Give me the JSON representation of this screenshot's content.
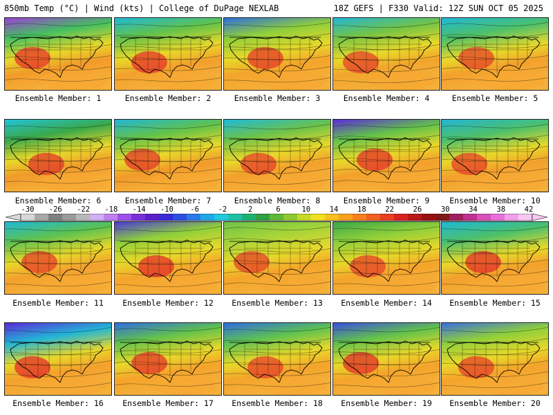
{
  "header": {
    "left_title": "850mb Temp (°C) | Wind (kts) | College of DuPage NEXLAB",
    "right_title": "18Z GEFS | F330 Valid: 12Z SUN OCT 05 2025"
  },
  "panels": [
    {
      "label": "Ensemble Member: 1",
      "north": "#9b3fd6",
      "mid": "#44c060",
      "south": "#f29a2a",
      "hot": "#e8352a"
    },
    {
      "label": "Ensemble Member: 2",
      "north": "#1fb8d8",
      "mid": "#62c24a",
      "south": "#f3a02c",
      "hot": "#e5352a"
    },
    {
      "label": "Ensemble Member: 3",
      "north": "#2f6de0",
      "mid": "#8fcf3a",
      "south": "#f4a42a",
      "hot": "#e43b2a"
    },
    {
      "label": "Ensemble Member: 4",
      "north": "#22b5d5",
      "mid": "#74c445",
      "south": "#f2a52c",
      "hot": "#e5412a"
    },
    {
      "label": "Ensemble Member: 5",
      "north": "#1fb8d8",
      "mid": "#4cc06a",
      "south": "#f3a02c",
      "hot": "#e5442a"
    },
    {
      "label": "Ensemble Member: 6",
      "north": "#22c3d8",
      "mid": "#3aa84a",
      "south": "#f19a2a",
      "hot": "#e23b2a"
    },
    {
      "label": "Ensemble Member: 7",
      "north": "#22b5d5",
      "mid": "#62c24a",
      "south": "#f29a2a",
      "hot": "#e43a2a"
    },
    {
      "label": "Ensemble Member: 8",
      "north": "#1fb8d8",
      "mid": "#6dc24a",
      "south": "#f3a02c",
      "hot": "#e5412a"
    },
    {
      "label": "Ensemble Member: 9",
      "north": "#5a2ad8",
      "mid": "#62c24a",
      "south": "#f3a02c",
      "hot": "#e4332a"
    },
    {
      "label": "Ensemble Member: 10",
      "north": "#22b5d5",
      "mid": "#4cc06a",
      "south": "#f3a02c",
      "hot": "#e5412a"
    },
    {
      "label": "Ensemble Member: 11",
      "north": "#1fb8d8",
      "mid": "#5ec250",
      "south": "#f3a02c",
      "hot": "#e5412a"
    },
    {
      "label": "Ensemble Member: 12",
      "north": "#4a3ad8",
      "mid": "#8fcf3a",
      "south": "#f4a42a",
      "hot": "#e3302a"
    },
    {
      "label": "Ensemble Member: 13",
      "north": "#6dc24a",
      "mid": "#a6d43a",
      "south": "#f4a42a",
      "hot": "#e5412a"
    },
    {
      "label": "Ensemble Member: 14",
      "north": "#3aa84a",
      "mid": "#8fcf3a",
      "south": "#f4a42a",
      "hot": "#e5412a"
    },
    {
      "label": "Ensemble Member: 15",
      "north": "#1fb8d8",
      "mid": "#4cc06a",
      "south": "#f3a02c",
      "hot": "#e3302a"
    },
    {
      "label": "Ensemble Member: 16",
      "north": "#5a2ad8",
      "mid": "#22b5d5",
      "south": "#f3a02c",
      "hot": "#e3302a"
    },
    {
      "label": "Ensemble Member: 17",
      "north": "#2f6de0",
      "mid": "#62c24a",
      "south": "#f4a42a",
      "hot": "#e5352a"
    },
    {
      "label": "Ensemble Member: 18",
      "north": "#2f6de0",
      "mid": "#5ec250",
      "south": "#f4a42a",
      "hot": "#e5412a"
    },
    {
      "label": "Ensemble Member: 19",
      "north": "#3a4ee0",
      "mid": "#62c24a",
      "south": "#f4a42a",
      "hot": "#e3302a"
    },
    {
      "label": "Ensemble Member: 20",
      "north": "#3a6ee0",
      "mid": "#8fcf3a",
      "south": "#f4a42a",
      "hot": "#e5412a"
    }
  ],
  "colorbar": {
    "labels": [
      "-30",
      "-26",
      "-22",
      "-18",
      "-14",
      "-10",
      "-6",
      "-2",
      "2",
      "6",
      "10",
      "14",
      "18",
      "22",
      "26",
      "30",
      "34",
      "38",
      "42"
    ],
    "colors": [
      "#d8d8d8",
      "#a8a8a8",
      "#808080",
      "#9a9a9a",
      "#b8b8b8",
      "#d0b0f0",
      "#c080f0",
      "#a050e8",
      "#7a30d8",
      "#5a20c8",
      "#3a2ad8",
      "#2a50e0",
      "#2a7ae8",
      "#20a8e8",
      "#20c8e0",
      "#20c0a8",
      "#20b070",
      "#30a040",
      "#60b838",
      "#90c830",
      "#c8d828",
      "#f0e020",
      "#f8c020",
      "#f8a020",
      "#f88020",
      "#f06020",
      "#e84020",
      "#d82020",
      "#b81818",
      "#981010",
      "#801818",
      "#a02060",
      "#c03090",
      "#d850b8",
      "#e870d8",
      "#f0a0e8",
      "#f8c8f0"
    ]
  }
}
